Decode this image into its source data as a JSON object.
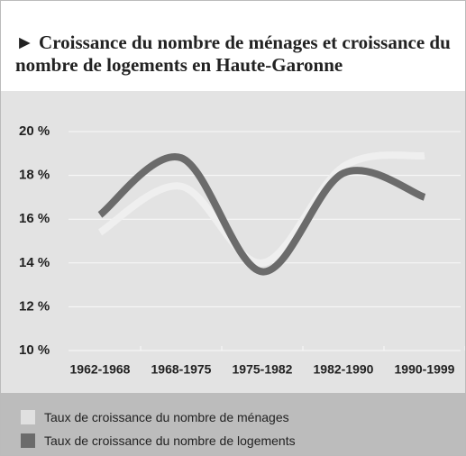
{
  "chart_data": {
    "type": "line",
    "title": "► Croissance du nombre de ménages et croissance du nombre de logements en Haute-Garonne",
    "categories": [
      "1962-1968",
      "1968-1975",
      "1975-1982",
      "1982-1990",
      "1990-1999"
    ],
    "series": [
      {
        "name": "Taux de croissance du nombre de ménages",
        "color": "#efefef",
        "values": [
          15.4,
          17.5,
          14.0,
          18.4,
          18.9
        ]
      },
      {
        "name": "Taux de croissance du nombre de logements",
        "color": "#6b6b6b",
        "values": [
          16.2,
          18.8,
          13.6,
          18.1,
          17.0
        ]
      }
    ],
    "ylim": [
      10,
      20
    ],
    "yticks": [
      {
        "value": 10,
        "label": "10 %"
      },
      {
        "value": 12,
        "label": "12 %"
      },
      {
        "value": 14,
        "label": "14 %"
      },
      {
        "value": 16,
        "label": "16 %"
      },
      {
        "value": 18,
        "label": "18 %"
      },
      {
        "value": 20,
        "label": "20 %"
      }
    ],
    "grid": true
  }
}
